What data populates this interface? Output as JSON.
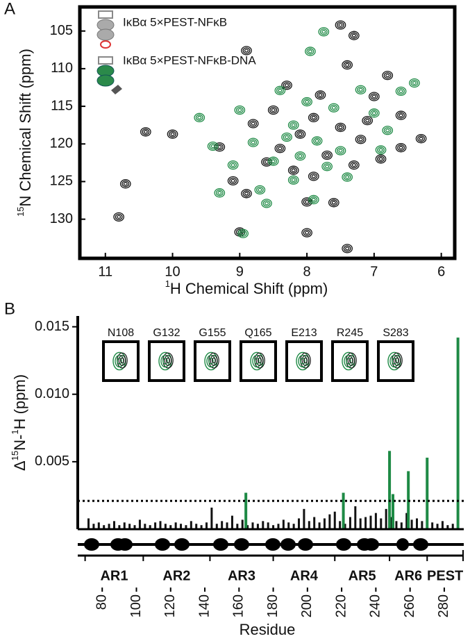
{
  "chart_data": [
    {
      "type": "scatter",
      "panel": "A",
      "x_label": [
        {
          "text": "1",
          "sup": true
        },
        {
          "text": "H Chemical Shift (ppm)"
        }
      ],
      "y_label": [
        {
          "text": "15",
          "sup": true
        },
        {
          "text": "N Chemical Shift (ppm)"
        }
      ],
      "xlim": [
        11.38,
        5.8
      ],
      "ylim": [
        135.2,
        101.8
      ],
      "xticks": [
        11,
        10,
        9,
        8,
        7,
        6
      ],
      "yticks": [
        105,
        110,
        115,
        120,
        125,
        130
      ],
      "series": [
        {
          "name": "IκBα 5×PEST-NFκB",
          "color": "#111111",
          "x": [
            10.7,
            10.8,
            10.4,
            10.0,
            9.3,
            9.0,
            8.9,
            7.2,
            8.0,
            7.6,
            7.4,
            8.9,
            7.5,
            7.3,
            7.4,
            6.8,
            7.0,
            6.3,
            6.6,
            6.6,
            8.3,
            7.8,
            7.9,
            8.1,
            7.5,
            8.4,
            7.7,
            8.6,
            8.2,
            7.9,
            7.3,
            8.8,
            7.1,
            6.9,
            8.5,
            9.1,
            8.0
          ],
          "values": [
            125.3,
            129.7,
            118.4,
            118.7,
            120.4,
            131.7,
            126.6,
            119.4,
            127.7,
            127.8,
            133.9,
            107.6,
            104.2,
            105.6,
            109.5,
            110.9,
            113.7,
            119.3,
            120.5,
            116.2,
            112.2,
            113.5,
            116.5,
            118.7,
            117.8,
            120.6,
            121.5,
            122.4,
            123.5,
            124.3,
            122.8,
            117.3,
            116.9,
            122.0,
            115.5,
            124.9,
            131.8
          ]
        },
        {
          "name": "IκBα 5×PEST-NFκB-DNA",
          "color": "#1e8a45",
          "x": [
            9.4,
            9.1,
            8.95,
            9.3,
            8.7,
            9.6,
            7.75,
            7.95,
            6.6,
            6.4,
            7.2,
            8.4,
            8.0,
            7.6,
            8.2,
            7.85,
            8.1,
            8.5,
            7.7,
            8.2,
            7.4,
            8.8,
            6.8,
            7.0,
            8.6,
            7.9,
            9.0,
            7.5,
            8.3,
            6.9
          ],
          "values": [
            120.3,
            122.8,
            131.9,
            126.5,
            126.1,
            116.5,
            105.1,
            107.7,
            113.0,
            111.9,
            112.8,
            112.9,
            114.4,
            115.2,
            117.5,
            119.6,
            121.6,
            122.3,
            123.0,
            124.8,
            124.4,
            119.8,
            118.2,
            115.9,
            127.9,
            127.4,
            115.5,
            120.9,
            119.1,
            120.8
          ]
        }
      ]
    },
    {
      "type": "bar",
      "panel": "B",
      "x_label": "Residue",
      "y_label": [
        {
          "text": "Δ"
        },
        {
          "text": "15",
          "sup": true
        },
        {
          "text": "N-"
        },
        {
          "text": "1",
          "sup": true
        },
        {
          "text": "H (ppm)"
        }
      ],
      "xlim": [
        65.7,
        291.4
      ],
      "ylim": [
        0,
        0.0158
      ],
      "xticks": [
        80,
        100,
        120,
        140,
        160,
        180,
        200,
        220,
        240,
        260,
        280
      ],
      "yticks": [
        0.005,
        {
          "value": 0.01,
          "label": "0.010"
        },
        0.015
      ],
      "threshold": 0.0021,
      "insets": [
        "N108",
        "G132",
        "G155",
        "Q165",
        "E213",
        "R245",
        "S283"
      ],
      "domains": [
        {
          "label": "AR1",
          "start": 70,
          "end": 104
        },
        {
          "label": "AR2",
          "start": 104,
          "end": 143
        },
        {
          "label": "AR3",
          "start": 143,
          "end": 180
        },
        {
          "label": "AR4",
          "start": 180,
          "end": 216
        },
        {
          "label": "AR5",
          "start": 216,
          "end": 248
        },
        {
          "label": "AR6",
          "start": 248,
          "end": 270
        },
        {
          "label": "PEST",
          "start": 270,
          "end": 291
        }
      ],
      "series": [
        {
          "color": "#111111",
          "x": [
            72,
            75,
            78,
            81,
            84,
            87,
            90,
            93,
            96,
            99,
            102,
            105,
            108,
            111,
            114,
            117,
            120,
            123,
            126,
            129,
            132,
            135,
            138,
            141,
            144,
            147,
            150,
            153,
            156,
            159,
            162,
            165,
            168,
            171,
            174,
            177,
            180,
            183,
            186,
            189,
            192,
            195,
            198,
            201,
            204,
            207,
            210,
            213,
            216,
            219,
            222,
            225,
            228,
            231,
            234,
            237,
            240,
            243,
            246,
            249,
            252,
            255,
            258,
            261,
            264,
            267,
            270,
            273,
            276,
            279,
            282,
            285,
            288
          ],
          "values": [
            0.0008,
            0.0004,
            0.0005,
            0.0003,
            0.0004,
            0.0006,
            0.0003,
            0.0005,
            0.0004,
            0.0003,
            0.0007,
            0.0004,
            0.0003,
            0.0005,
            0.0006,
            0.0004,
            0.0003,
            0.0005,
            0.0004,
            0.0003,
            0.0006,
            0.0004,
            0.0003,
            0.0005,
            0.0016,
            0.0004,
            0.0006,
            0.0005,
            0.001,
            0.0004,
            0.0007,
            0.0003,
            0.0005,
            0.0004,
            0.0006,
            0.0005,
            0.0003,
            0.0004,
            0.0007,
            0.0005,
            0.0004,
            0.0008,
            0.0015,
            0.0006,
            0.0009,
            0.0005,
            0.0008,
            0.0011,
            0.0013,
            0.0006,
            0.0004,
            0.0009,
            0.0017,
            0.0008,
            0.0009,
            0.001,
            0.0012,
            0.0008,
            0.0015,
            0.0009,
            0.0006,
            0.0005,
            0.0012,
            0.0007,
            0.0008,
            0.0006,
            0.0004,
            0.0005,
            0.0004,
            0.0006,
            0.0003,
            0.0004,
            0.0005
          ]
        },
        {
          "color": "#1e8a45",
          "x": [
            164,
            221,
            248,
            250,
            259,
            270,
            288
          ],
          "values": [
            0.0027,
            0.0027,
            0.0058,
            0.0026,
            0.0043,
            0.0053,
            0.0142
          ]
        }
      ]
    }
  ]
}
